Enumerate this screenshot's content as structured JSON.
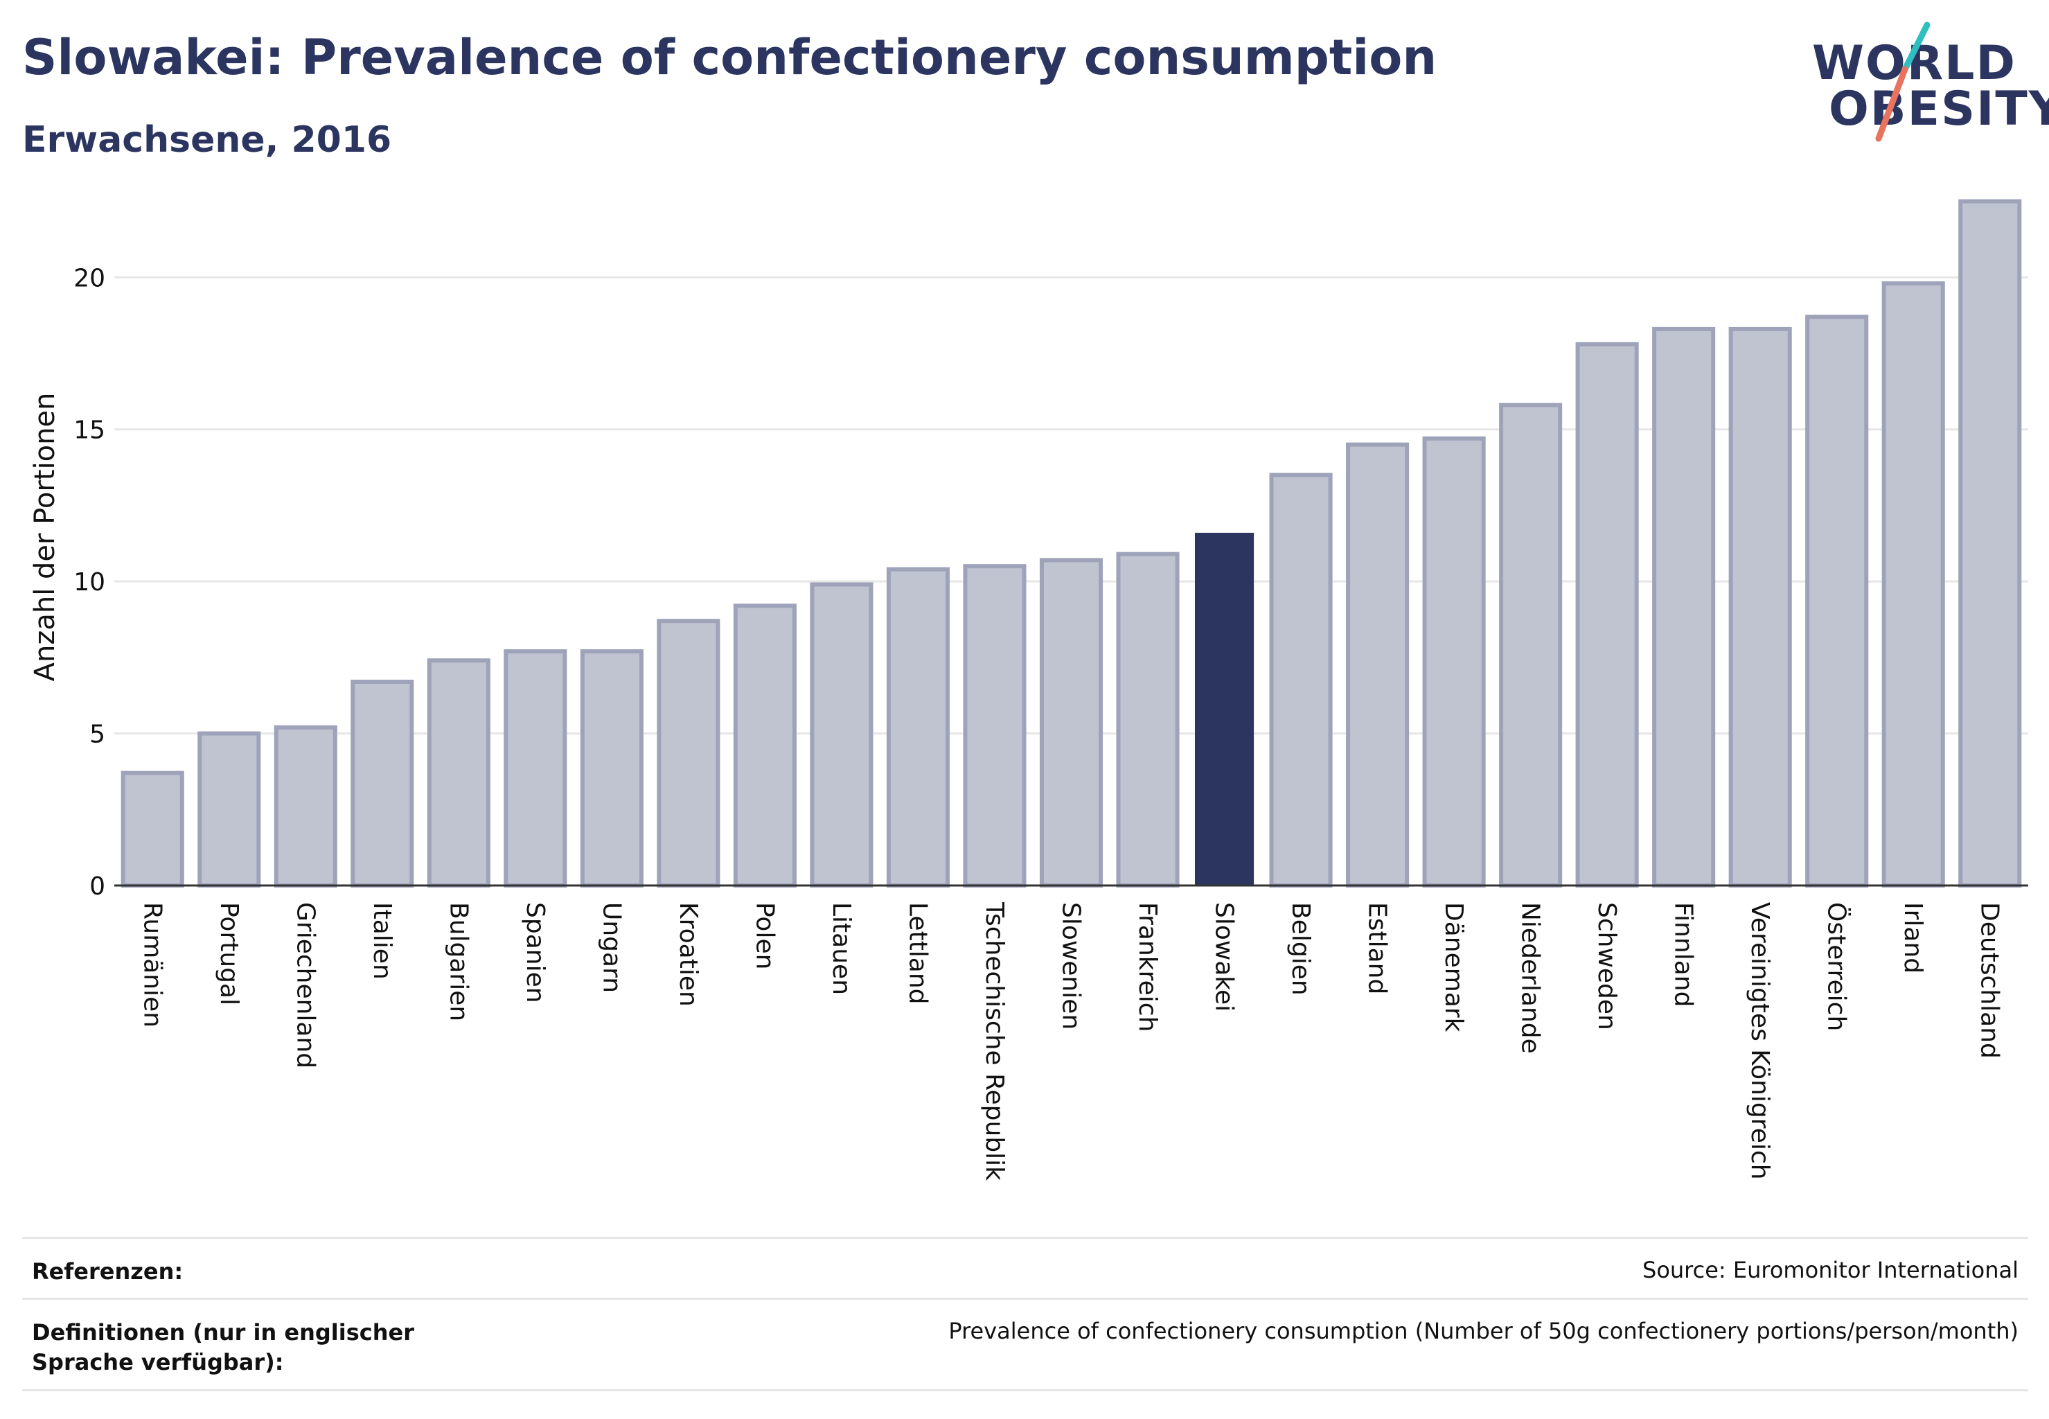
{
  "title": "Slowakei: Prevalence of confectionery consumption",
  "subtitle": "Erwachsene, 2016",
  "logo": {
    "line1": "WORLD",
    "line2": "OBESITY"
  },
  "colors": {
    "highlight": "#2b3560",
    "bar": "#c0c3d0",
    "bar_border": "#9ea3ba",
    "grid": "#e6e6e6",
    "logo_teal": "#2fbfc0",
    "logo_coral": "#e8735f"
  },
  "chart_data": {
    "type": "bar",
    "title": "Slowakei: Prevalence of confectionery consumption",
    "ylabel": "Anzahl der Portionen",
    "xlabel": "",
    "ylim": [
      0,
      22.9
    ],
    "yticks": [
      0,
      5,
      10,
      15,
      20
    ],
    "grid": true,
    "highlight": "Slowakei",
    "categories": [
      "Rumänien",
      "Portugal",
      "Griechenland",
      "Italien",
      "Bulgarien",
      "Spanien",
      "Ungarn",
      "Kroatien",
      "Polen",
      "Litauen",
      "Lettland",
      "Tschechische Republik",
      "Slowenien",
      "Frankreich",
      "Slowakei",
      "Belgien",
      "Estland",
      "Dänemark",
      "Niederlande",
      "Schweden",
      "Finnland",
      "Vereinigtes Königreich",
      "Österreich",
      "Irland",
      "Deutschland"
    ],
    "values": [
      3.7,
      5.0,
      5.2,
      6.7,
      7.4,
      7.7,
      7.7,
      8.7,
      9.2,
      9.9,
      10.4,
      10.5,
      10.7,
      10.9,
      11.6,
      13.5,
      14.5,
      14.7,
      15.8,
      17.8,
      18.3,
      18.3,
      18.7,
      19.8,
      22.5
    ]
  },
  "footer": {
    "references_label": "Referenzen:",
    "references_text": "Source: Euromonitor International",
    "definitions_label": "Definitionen (nur in englischer Sprache verfügbar):",
    "definitions_text": "Prevalence of confectionery consumption (Number of 50g confectionery portions/person/month)"
  }
}
